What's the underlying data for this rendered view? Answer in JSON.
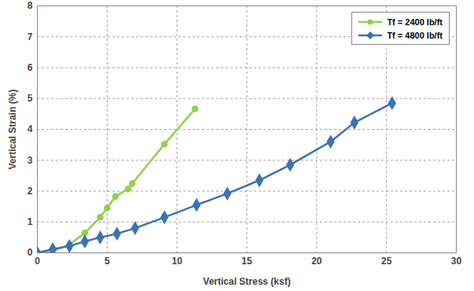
{
  "chart_data": {
    "type": "line",
    "x_label": "Vertical Stress (ksf)",
    "y_label": "Vertical Strain (%)",
    "xlim": [
      0,
      30
    ],
    "xticks": [
      0,
      5,
      10,
      15,
      20,
      25,
      30
    ],
    "ylim": [
      0,
      8
    ],
    "yticks": [
      0,
      1,
      2,
      3,
      4,
      5,
      6,
      7,
      8
    ],
    "grid": true,
    "legend": "upper right",
    "series": [
      {
        "name": "Tf = 2400 lb/ft",
        "color": "#92d050",
        "marker": "circle",
        "x": [
          0,
          1.1,
          2.3,
          3.4,
          4.5,
          5.0,
          5.6,
          6.5,
          6.8,
          9.1,
          11.3
        ],
        "values": [
          0,
          0.05,
          0.27,
          0.65,
          1.15,
          1.45,
          1.83,
          2.07,
          2.25,
          3.52,
          4.67
        ]
      },
      {
        "name": "Tf = 4800 lb/ft",
        "color": "#3c72b5",
        "marker": "diamond",
        "x": [
          0,
          1.1,
          2.3,
          3.4,
          4.5,
          5.7,
          7.0,
          9.1,
          11.4,
          13.6,
          15.9,
          18.1,
          21.0,
          22.7,
          25.4
        ],
        "values": [
          0,
          0.12,
          0.22,
          0.37,
          0.5,
          0.62,
          0.8,
          1.15,
          1.55,
          1.92,
          2.35,
          2.85,
          3.6,
          4.22,
          4.85
        ]
      }
    ]
  }
}
